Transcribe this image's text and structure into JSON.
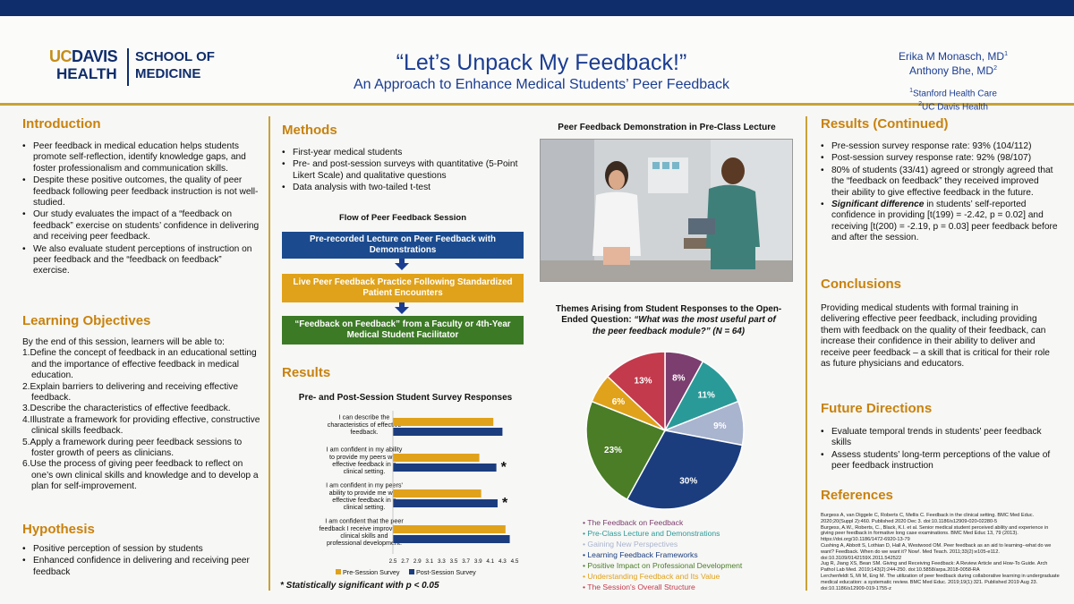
{
  "header": {
    "logo_uc": "UC",
    "logo_davis": "DAVIS",
    "logo_health": "HEALTH",
    "logo_school_line1": "SCHOOL OF",
    "logo_school_line2": "MEDICINE",
    "title": "“Let’s Unpack My Feedback!”",
    "subtitle": "An Approach to Enhance Medical Students’ Peer Feedback",
    "author1": "Erika M Monasch, MD",
    "author1_sup": "1",
    "author2": "Anthony Bhe, MD",
    "author2_sup": "2",
    "affil1_sup": "1",
    "affil1": "Stanford Health Care",
    "affil2_sup": "2",
    "affil2": "UC Davis Health"
  },
  "introduction": {
    "heading": "Introduction",
    "bullets": [
      "Peer feedback in medical education helps students promote self-reflection, identify knowledge gaps, and foster professionalism and communication skills.",
      "Despite these positive outcomes, the quality of peer feedback following peer feedback instruction is not well-studied.",
      "Our study evaluates the impact of a “feedback on feedback” exercise on students’ confidence in delivering and receiving peer feedback.",
      "We also evaluate student perceptions of instruction on peer feedback and the “feedback on feedback” exercise."
    ]
  },
  "learning_objectives": {
    "heading": "Learning Objectives",
    "intro": "By the end of this session, learners will be able to:",
    "items": [
      "1.Define the concept of feedback in an educational setting and the importance of effective feedback in medical education.",
      "2.Explain barriers to delivering and receiving effective feedback.",
      "3.Describe the characteristics of effective feedback.",
      "4.Illustrate a framework for providing effective, constructive clinical skills feedback.",
      "5.Apply a framework during peer feedback sessions to foster growth of peers as clinicians.",
      "6.Use the process of giving peer feedback to reflect on one’s own clinical skills and knowledge and to develop a plan for self-improvement."
    ]
  },
  "hypothesis": {
    "heading": "Hypothesis",
    "bullets": [
      "Positive perception of session by students",
      "Enhanced confidence in delivering and receiving peer feedback"
    ]
  },
  "methods": {
    "heading": "Methods",
    "bullets": [
      "First-year medical students",
      "Pre- and post-session surveys with quantitative (5-Point Likert Scale) and qualitative questions",
      "Data analysis with two-tailed t-test"
    ],
    "flow_title": "Flow of Peer Feedback Session",
    "flow_steps": [
      "Pre-recorded Lecture on Peer Feedback with Demonstrations",
      "Live Peer Feedback Practice Following Standardized Patient Encounters",
      "“Feedback on Feedback” from a Faculty or 4th-Year Medical Student Facilitator"
    ],
    "flow_colors": [
      "#1b4b8e",
      "#e0a21a",
      "#3d7a26"
    ]
  },
  "results": {
    "heading": "Results",
    "chart_title": "Pre- and Post-Session Student Survey Responses",
    "footnote": "* Statistically significant with p < 0.05"
  },
  "photo": {
    "caption": "Peer Feedback Demonstration in Pre-Class Lecture"
  },
  "pie_section": {
    "title_line1": "Themes Arising from Student Responses to the Open-",
    "title_line2_plain": "Ended Question: ",
    "title_line2_italic": "“What was the most useful part of",
    "title_line3_italic": "the peer feedback module?” (N = 64)"
  },
  "results_continued": {
    "heading": "Results (Continued)",
    "bullets": [
      "Pre-session survey response rate: 93% (104/112)",
      "Post-session survey response rate: 92% (98/107)",
      "80% of students (33/41) agreed or strongly agreed that the “feedback on feedback” they received improved their ability to give effective feedback in the future."
    ],
    "sig_bold": "Significant difference",
    "sig_rest": " in students’ self-reported confidence in providing [t(199) = -2.42, p = 0.02] and receiving [t(200) = -2.19, p = 0.03] peer feedback before and after the session."
  },
  "conclusions": {
    "heading": "Conclusions",
    "text": "Providing medical students with formal training in delivering effective peer feedback, including providing them with feedback on the quality of their feedback, can increase their confidence in their ability to deliver and receive peer feedback – a skill that is critical for their role as future physicians and educators."
  },
  "future_directions": {
    "heading": "Future Directions",
    "bullets": [
      "Evaluate temporal trends in students’ peer feedback skills",
      "Assess students’ long-term perceptions of the value of peer feedback instruction"
    ]
  },
  "references": {
    "heading": "References",
    "items": [
      "Burgess A, van Diggele C, Roberts C, Mellis C. Feedback in the clinical setting. BMC Med Educ. 2020;20(Suppl 2):460. Published 2020 Dec 3. doi:10.1186/s12909-020-02280-5",
      "Burgess, A.W., Roberts, C., Black, K.I. et al. Senior medical student perceived ability and experience in giving peer feedback in formative long case examinations. BMC Med Educ 13, 79 (2013). https://doi.org/10.1186/1472-6920-13-79",
      "Cushing A, Abbott S, Lothian D, Hall A, Westwood OM. Peer feedback as an aid to learning--what do we want? Feedback. When do we want it? Now!. Med Teach. 2011;33(2):e105-e112. doi:10.3109/0142159X.2011.542522",
      "Jug R, Jiang XS, Bean SM. Giving and Receiving Feedback: A Review Article and How-To Guide. Arch Pathol Lab Med. 2019;143(2):244-250. doi:10.5858/arpa.2018-0058-RA",
      "Lerchenfeldt S, Mi M, Eng M. The utilization of peer feedback during collaborative learning in undergraduate medical education: a systematic review. BMC Med Educ. 2019;19(1):321. Published 2019 Aug 23. doi:10.1186/s12909-019-1755-z"
    ]
  },
  "chart_data": [
    {
      "type": "bar",
      "title": "Pre- and Post-Session Student Survey Responses",
      "orientation": "horizontal",
      "categories": [
        "I can describe the characteristics of effective feedback.",
        "I am confident in my ability to provide my peers with effective feedback in a clinical setting.",
        "I am confident in my peers' ability to provide me with effective feedback in a clinical setting.",
        "I am confident that the peer feedback I receive improves my clinical skills and professional development."
      ],
      "series": [
        {
          "name": "Pre-Session Survey",
          "color": "#e0a21a",
          "values": [
            4.15,
            3.92,
            3.95,
            4.35
          ]
        },
        {
          "name": "Post-Session Survey",
          "color": "#1b3d7e",
          "values": [
            4.3,
            4.2,
            4.22,
            4.42
          ]
        }
      ],
      "significant": [
        false,
        true,
        true,
        false
      ],
      "significance_mark": "*",
      "xlim": [
        2.5,
        4.5
      ],
      "xticks": [
        "2.5",
        "2.7",
        "2.9",
        "3.1",
        "3.3",
        "3.5",
        "3.7",
        "3.9",
        "4.1",
        "4.3",
        "4.5"
      ]
    },
    {
      "type": "pie",
      "title": "Themes Arising from Student Responses to the Open-Ended Question: “What was the most useful part of the peer feedback module?” (N = 64)",
      "slices": [
        {
          "label": "The Feedback on Feedback",
          "value": 8,
          "display": "8%",
          "color": "#7b3e6e"
        },
        {
          "label": "Pre-Class Lecture and Demonstrations",
          "value": 11,
          "display": "11%",
          "color": "#2a9a98"
        },
        {
          "label": "Gaining New Perspectives",
          "value": 9,
          "display": "9%",
          "color": "#a9b4cf"
        },
        {
          "label": "Learning Feedback Frameworks",
          "value": 30,
          "display": "30%",
          "color": "#1b3d7e"
        },
        {
          "label": "Positive Impact on Professional Development",
          "value": 23,
          "display": "23%",
          "color": "#4a7d26"
        },
        {
          "label": "Understanding Feedback and Its Value",
          "value": 6,
          "display": "6%",
          "color": "#e0a21a"
        },
        {
          "label": "The Session's Overall Structure",
          "value": 13,
          "display": "13%",
          "color": "#c23a4c"
        }
      ]
    }
  ]
}
